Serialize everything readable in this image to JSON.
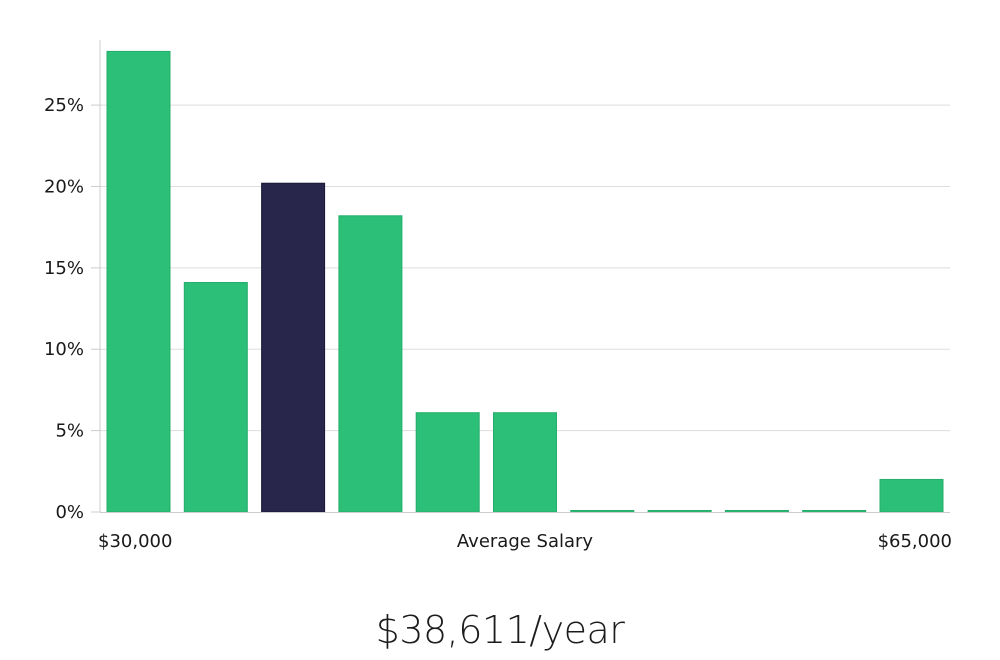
{
  "chart_data": {
    "type": "bar",
    "xlabel": "Average Salary",
    "x_range_labels": {
      "min": "$30,000",
      "max": "$65,000"
    },
    "ylim": [
      0,
      29
    ],
    "y_ticks": [
      0,
      5,
      10,
      15,
      20,
      25
    ],
    "y_tick_labels": [
      "0%",
      "5%",
      "10%",
      "15%",
      "20%",
      "25%"
    ],
    "values": [
      28.3,
      14.1,
      20.2,
      18.2,
      6.1,
      6.1,
      0.05,
      0.05,
      0.05,
      0.05,
      2.0
    ],
    "highlight_index": 2,
    "grid": true,
    "colors": {
      "bar": "#2bbf77",
      "highlight": "#28264a",
      "grid": "#dddddd",
      "axis": "#cccccc"
    }
  },
  "salary": {
    "text": "$38,611/year"
  }
}
